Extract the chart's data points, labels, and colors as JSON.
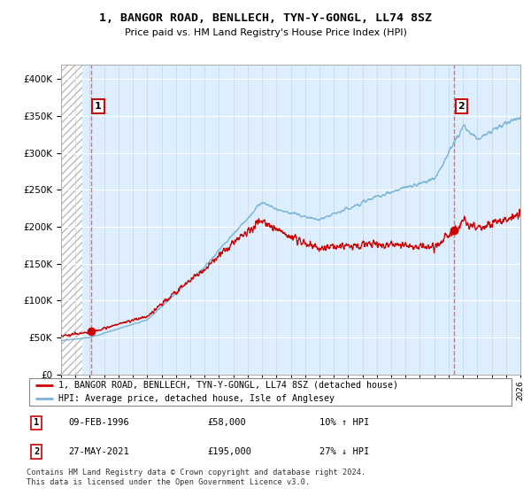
{
  "title": "1, BANGOR ROAD, BENLLECH, TYN-Y-GONGL, LL74 8SZ",
  "subtitle": "Price paid vs. HM Land Registry's House Price Index (HPI)",
  "legend_line1": "1, BANGOR ROAD, BENLLECH, TYN-Y-GONGL, LL74 8SZ (detached house)",
  "legend_line2": "HPI: Average price, detached house, Isle of Anglesey",
  "annotation1_date": "09-FEB-1996",
  "annotation1_price": "£58,000",
  "annotation1_hpi": "10% ↑ HPI",
  "annotation2_date": "27-MAY-2021",
  "annotation2_price": "£195,000",
  "annotation2_hpi": "27% ↓ HPI",
  "footnote": "Contains HM Land Registry data © Crown copyright and database right 2024.\nThis data is licensed under the Open Government Licence v3.0.",
  "sale1_year": 1996.1,
  "sale1_price": 58000,
  "sale2_year": 2021.4,
  "sale2_price": 195000,
  "hpi_color": "#7ab5d8",
  "price_color": "#cc0000",
  "dashed_color": "#ff5555",
  "plot_bg_color": "#ddeeff",
  "ylim": [
    0,
    420000
  ],
  "xlim_start": 1994,
  "xlim_end": 2026,
  "yticks": [
    0,
    50000,
    100000,
    150000,
    200000,
    250000,
    300000,
    350000,
    400000
  ],
  "hatch_end": 1995.5
}
